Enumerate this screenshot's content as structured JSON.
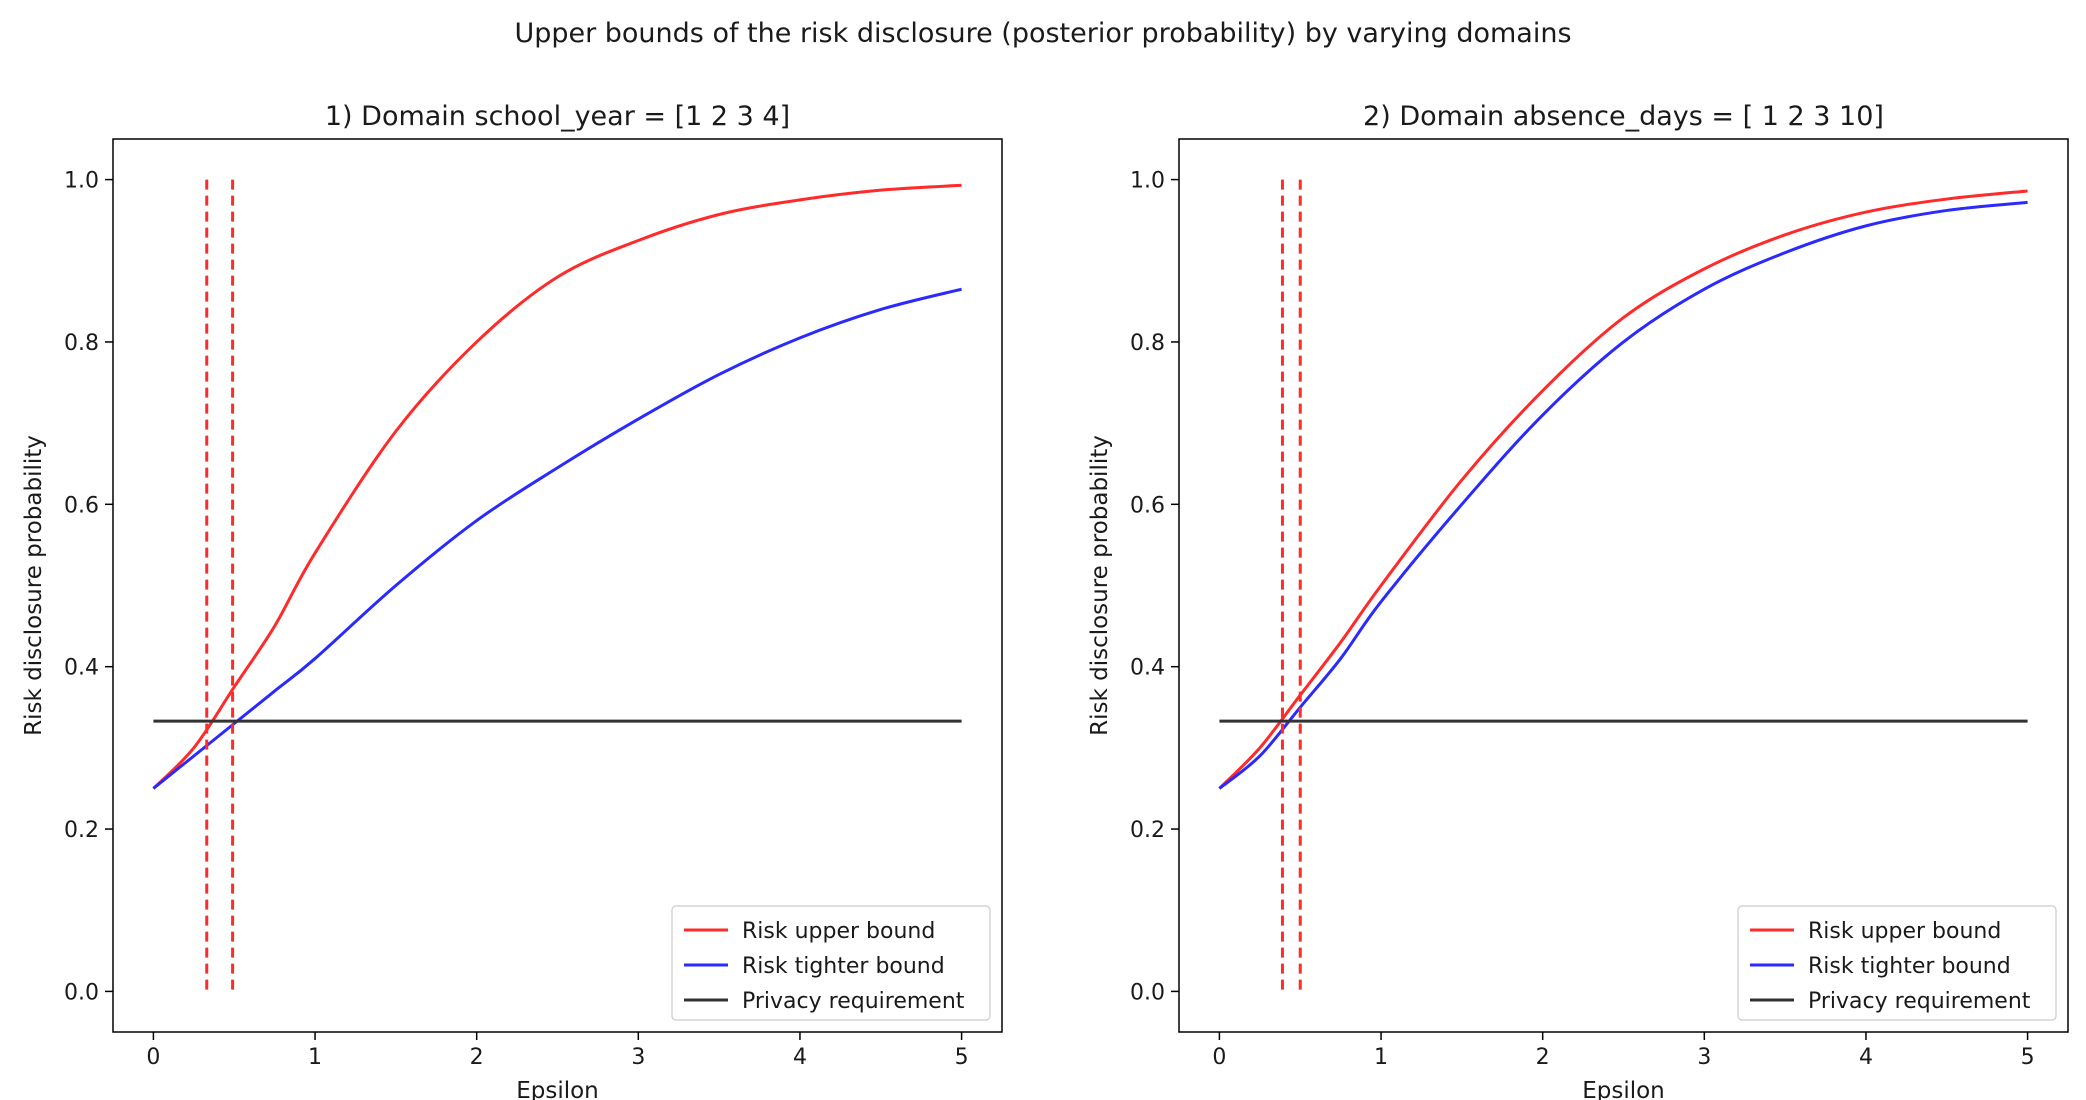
{
  "suptitle": "Upper bounds of the risk disclosure (posterior probability) by varying domains",
  "colors": {
    "upper": "#ff2a2a",
    "tighter": "#2a2aff",
    "requirement": "#333333",
    "threshold": "#ff2a2a"
  },
  "chart_data": [
    {
      "type": "line",
      "title": "1) Domain school_year = [1 2 3 4]",
      "xlabel": "Epsilon",
      "ylabel": "Risk disclosure probability",
      "xlim": [
        -0.25,
        5.25
      ],
      "ylim": [
        -0.05,
        1.05
      ],
      "xticks": [
        0,
        1,
        2,
        3,
        4,
        5
      ],
      "yticks": [
        0.0,
        0.2,
        0.4,
        0.6,
        0.8,
        1.0
      ],
      "legend_position": "lower-right",
      "grid": false,
      "series": [
        {
          "name": "Risk upper bound",
          "style": "solid",
          "x": [
            0,
            0.25,
            0.5,
            0.75,
            1.0,
            1.5,
            2.0,
            2.5,
            3.0,
            3.5,
            4.0,
            4.5,
            5.0
          ],
          "y": [
            0.25,
            0.3,
            0.375,
            0.45,
            0.54,
            0.69,
            0.8,
            0.88,
            0.925,
            0.957,
            0.975,
            0.987,
            0.993
          ]
        },
        {
          "name": "Risk tighter bound",
          "style": "solid",
          "x": [
            0,
            0.25,
            0.5,
            0.75,
            1.0,
            1.5,
            2.0,
            2.5,
            3.0,
            3.5,
            4.0,
            4.5,
            5.0
          ],
          "y": [
            0.25,
            0.29,
            0.33,
            0.37,
            0.41,
            0.5,
            0.58,
            0.645,
            0.705,
            0.76,
            0.805,
            0.84,
            0.865
          ]
        },
        {
          "name": "Privacy requirement",
          "style": "solid",
          "x": [
            0,
            5
          ],
          "y": [
            0.333,
            0.333
          ]
        }
      ],
      "vlines": [
        {
          "x": 0.33,
          "ymin": 0.0,
          "ymax": 1.0
        },
        {
          "x": 0.49,
          "ymin": 0.0,
          "ymax": 1.0
        }
      ]
    },
    {
      "type": "line",
      "title": "2) Domain absence_days = [ 1  2  3 10]",
      "xlabel": "Epsilon",
      "ylabel": "Risk disclosure probability",
      "xlim": [
        -0.25,
        5.25
      ],
      "ylim": [
        -0.05,
        1.05
      ],
      "xticks": [
        0,
        1,
        2,
        3,
        4,
        5
      ],
      "yticks": [
        0.0,
        0.2,
        0.4,
        0.6,
        0.8,
        1.0
      ],
      "legend_position": "lower-right",
      "grid": false,
      "series": [
        {
          "name": "Risk upper bound",
          "style": "solid",
          "x": [
            0,
            0.25,
            0.5,
            0.75,
            1.0,
            1.5,
            2.0,
            2.5,
            3.0,
            3.5,
            4.0,
            4.5,
            5.0
          ],
          "y": [
            0.25,
            0.3,
            0.365,
            0.43,
            0.5,
            0.63,
            0.74,
            0.83,
            0.89,
            0.932,
            0.96,
            0.976,
            0.986
          ]
        },
        {
          "name": "Risk tighter bound",
          "style": "solid",
          "x": [
            0,
            0.25,
            0.5,
            0.75,
            1.0,
            1.5,
            2.0,
            2.5,
            3.0,
            3.5,
            4.0,
            4.5,
            5.0
          ],
          "y": [
            0.25,
            0.29,
            0.35,
            0.41,
            0.48,
            0.6,
            0.71,
            0.8,
            0.865,
            0.91,
            0.943,
            0.962,
            0.972
          ]
        },
        {
          "name": "Privacy requirement",
          "style": "solid",
          "x": [
            0,
            5
          ],
          "y": [
            0.333,
            0.333
          ]
        }
      ],
      "vlines": [
        {
          "x": 0.39,
          "ymin": 0.0,
          "ymax": 1.0
        },
        {
          "x": 0.5,
          "ymin": 0.0,
          "ymax": 1.0
        }
      ]
    }
  ]
}
